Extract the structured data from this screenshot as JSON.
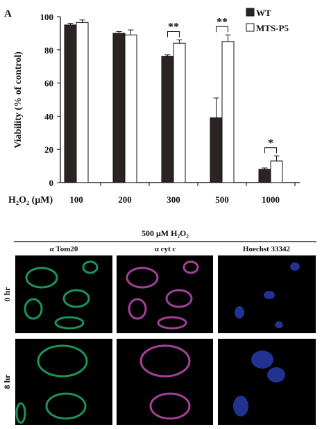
{
  "chart_data": {
    "type": "bar",
    "panel_label": "A",
    "ylabel": "Viability (% of control)",
    "xlabel": "H₂O₂ (μM)",
    "categories": [
      "100",
      "200",
      "300",
      "500",
      "1000"
    ],
    "series": [
      {
        "name": "WT",
        "color": "#2b2424",
        "values": [
          95,
          90,
          76,
          39,
          8
        ],
        "errors": [
          1,
          1,
          1,
          12,
          0.8
        ]
      },
      {
        "name": "MTS-P5",
        "color": "#ffffff",
        "values": [
          96.5,
          89,
          84,
          85,
          13
        ],
        "errors": [
          1.5,
          3,
          2,
          4,
          3
        ]
      }
    ],
    "annotations": [
      {
        "text": "**",
        "category": "300"
      },
      {
        "text": "**",
        "category": "500"
      },
      {
        "text": "*",
        "category": "1000"
      }
    ],
    "ylim": [
      0,
      100
    ],
    "yticks": [
      0,
      20,
      40,
      60,
      80,
      100
    ],
    "legend": "top-right"
  },
  "panel": {
    "title": "500 μM H₂O₂",
    "columns": [
      "α Tom20",
      "α cyt c",
      "Hoechst 33342"
    ],
    "rows": [
      "0 hr",
      "8 hr"
    ]
  }
}
